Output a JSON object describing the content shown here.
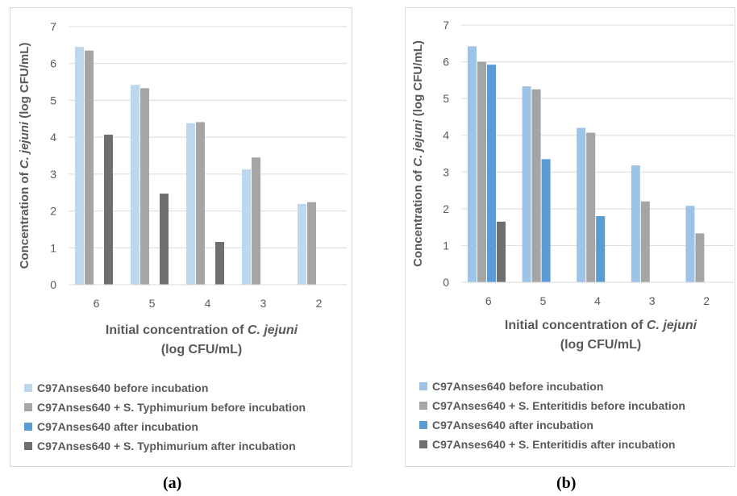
{
  "chart_data": [
    {
      "type": "bar",
      "panel_label": "(a)",
      "categories": [
        "6",
        "5",
        "4",
        "3",
        "2"
      ],
      "xlabel_line1_prefix": "Initial concentration of ",
      "xlabel_line1_italic": "C. jejuni",
      "xlabel_line2": "(log CFU/mL)",
      "ylabel_prefix": "Concentration of ",
      "ylabel_italic": "C. jejuni",
      "ylabel_suffix": " (log CFU/mL)",
      "ylim": [
        0,
        7
      ],
      "yticks": [
        "0",
        "1",
        "2",
        "3",
        "4",
        "5",
        "6",
        "7"
      ],
      "grid": true,
      "legend_position": "bottom",
      "series": [
        {
          "name": "C97Anses640 before incubation",
          "color": "#bdd7ee",
          "values": [
            6.45,
            5.42,
            4.38,
            3.13,
            2.19
          ]
        },
        {
          "name": "C97Anses640 + S. Typhimurium before incubation",
          "color": "#a5a5a5",
          "values": [
            6.35,
            5.33,
            4.41,
            3.45,
            2.24
          ]
        },
        {
          "name": "C97Anses640 after incubation",
          "color": "#5b9bd5",
          "values": [
            null,
            null,
            null,
            null,
            null
          ]
        },
        {
          "name": "C97Anses640 + S. Typhimurium after incubation",
          "color": "#6f6f6f",
          "values": [
            4.07,
            2.47,
            1.16,
            null,
            null
          ]
        }
      ]
    },
    {
      "type": "bar",
      "panel_label": "(b)",
      "categories": [
        "6",
        "5",
        "4",
        "3",
        "2"
      ],
      "xlabel_line1_prefix": "Initial concentration of ",
      "xlabel_line1_italic": "C. jejuni",
      "xlabel_line2": "(log CFU/mL)",
      "ylabel_prefix": "Concentration of ",
      "ylabel_italic": "C. jejuni",
      "ylabel_suffix": " (log CFU/mL)",
      "ylim": [
        0,
        7
      ],
      "yticks": [
        "0",
        "1",
        "2",
        "3",
        "4",
        "5",
        "6",
        "7"
      ],
      "grid": true,
      "legend_position": "bottom",
      "series": [
        {
          "name": "C97Anses640 before incubation",
          "color": "#9dc3e6",
          "values": [
            6.42,
            5.33,
            4.2,
            3.18,
            2.08
          ]
        },
        {
          "name": "C97Anses640 + S. Enteritidis before incubation",
          "color": "#a5a5a5",
          "values": [
            6.0,
            5.25,
            4.07,
            2.2,
            1.33
          ]
        },
        {
          "name": "C97Anses640 after incubation",
          "color": "#5b9bd5",
          "values": [
            5.92,
            3.35,
            1.8,
            null,
            null
          ]
        },
        {
          "name": "C97Anses640 + S. Enteritidis after incubation",
          "color": "#6f6f6f",
          "values": [
            1.65,
            null,
            null,
            null,
            null
          ]
        }
      ]
    }
  ]
}
